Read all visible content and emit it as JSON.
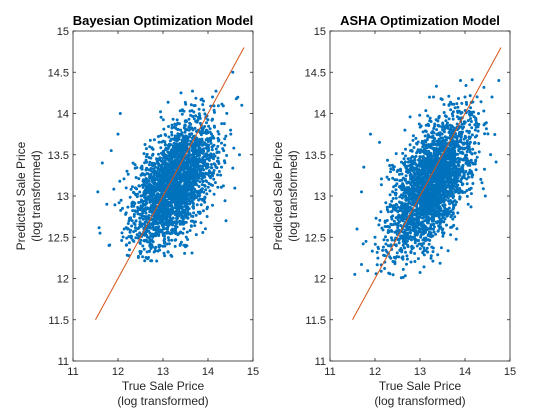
{
  "chart_data": [
    {
      "type": "scatter",
      "title": "Bayesian Optimization Model",
      "xlabel": [
        "True Sale Price",
        "(log transformed)"
      ],
      "ylabel": [
        "Predicted Sale Price",
        "(log transformed)"
      ],
      "xlim": [
        11,
        15
      ],
      "ylim": [
        11,
        15
      ],
      "xticks": [
        11,
        12,
        13,
        14,
        15
      ],
      "yticks": [
        11,
        11.5,
        12,
        12.5,
        13,
        13.5,
        14,
        14.5,
        15
      ],
      "ytick_labels": [
        "11",
        "11.5",
        "12",
        "12.5",
        "13",
        "13.5",
        "14",
        "14.5",
        "15"
      ],
      "xtick_labels": [
        "11",
        "12",
        "13",
        "14",
        "15"
      ],
      "marker_color": "#0072BD",
      "reference_line": {
        "x": [
          11.5,
          14.8
        ],
        "y": [
          11.5,
          14.8
        ],
        "color": "#D95319"
      },
      "point_cloud": {
        "n": 2600,
        "x_mean": 13.25,
        "x_sd": 0.45,
        "x_range": [
          11.5,
          14.8
        ],
        "slope": 0.42,
        "intercept_at_mean": 13.15,
        "y_sd": 0.32,
        "y_range": [
          12.2,
          14.3
        ]
      },
      "points": [
        {
          "x": 11.55,
          "y": 13.05
        },
        {
          "x": 11.6,
          "y": 12.55
        },
        {
          "x": 11.65,
          "y": 13.4
        },
        {
          "x": 11.75,
          "y": 12.9
        },
        {
          "x": 11.8,
          "y": 12.4
        },
        {
          "x": 11.85,
          "y": 13.55
        },
        {
          "x": 12.0,
          "y": 13.75
        },
        {
          "x": 12.05,
          "y": 14.0
        },
        {
          "x": 12.1,
          "y": 12.85
        },
        {
          "x": 12.2,
          "y": 13.3
        },
        {
          "x": 12.5,
          "y": 12.3
        },
        {
          "x": 12.35,
          "y": 12.45
        },
        {
          "x": 13.1,
          "y": 12.6
        },
        {
          "x": 13.4,
          "y": 14.25
        },
        {
          "x": 13.9,
          "y": 14.15
        },
        {
          "x": 14.1,
          "y": 14.2
        },
        {
          "x": 14.3,
          "y": 13.35
        },
        {
          "x": 14.4,
          "y": 12.7
        },
        {
          "x": 14.55,
          "y": 14.5
        },
        {
          "x": 14.7,
          "y": 13.5
        },
        {
          "x": 14.75,
          "y": 14.1
        }
      ]
    },
    {
      "type": "scatter",
      "title": "ASHA Optimization Model",
      "xlabel": [
        "True Sale Price",
        "(log transformed)"
      ],
      "ylabel": [
        "Predicted Sale Price",
        "(log transformed)"
      ],
      "xlim": [
        11,
        15
      ],
      "ylim": [
        11,
        15
      ],
      "xticks": [
        11,
        12,
        13,
        14,
        15
      ],
      "yticks": [
        11,
        11.5,
        12,
        12.5,
        13,
        13.5,
        14,
        14.5,
        15
      ],
      "ytick_labels": [
        "11",
        "11.5",
        "12",
        "12.5",
        "13",
        "13.5",
        "14",
        "14.5",
        "15"
      ],
      "xtick_labels": [
        "11",
        "12",
        "13",
        "14",
        "15"
      ],
      "marker_color": "#0072BD",
      "reference_line": {
        "x": [
          11.5,
          14.8
        ],
        "y": [
          11.5,
          14.8
        ],
        "color": "#D95319"
      },
      "point_cloud": {
        "n": 2600,
        "x_mean": 13.25,
        "x_sd": 0.45,
        "x_range": [
          11.5,
          14.8
        ],
        "slope": 0.5,
        "intercept_at_mean": 13.15,
        "y_sd": 0.33,
        "y_range": [
          12.0,
          14.45
        ]
      },
      "points": [
        {
          "x": 11.55,
          "y": 12.05
        },
        {
          "x": 11.6,
          "y": 12.6
        },
        {
          "x": 11.7,
          "y": 13.05
        },
        {
          "x": 11.75,
          "y": 13.35
        },
        {
          "x": 11.8,
          "y": 12.45
        },
        {
          "x": 11.9,
          "y": 13.75
        },
        {
          "x": 12.0,
          "y": 12.5
        },
        {
          "x": 12.1,
          "y": 13.65
        },
        {
          "x": 12.3,
          "y": 12.3
        },
        {
          "x": 12.6,
          "y": 12.25
        },
        {
          "x": 12.8,
          "y": 12.2
        },
        {
          "x": 13.3,
          "y": 14.2
        },
        {
          "x": 13.9,
          "y": 14.4
        },
        {
          "x": 14.0,
          "y": 14.2
        },
        {
          "x": 14.3,
          "y": 14.0
        },
        {
          "x": 14.45,
          "y": 13.0
        },
        {
          "x": 14.6,
          "y": 14.2
        },
        {
          "x": 14.75,
          "y": 14.4
        }
      ]
    }
  ]
}
